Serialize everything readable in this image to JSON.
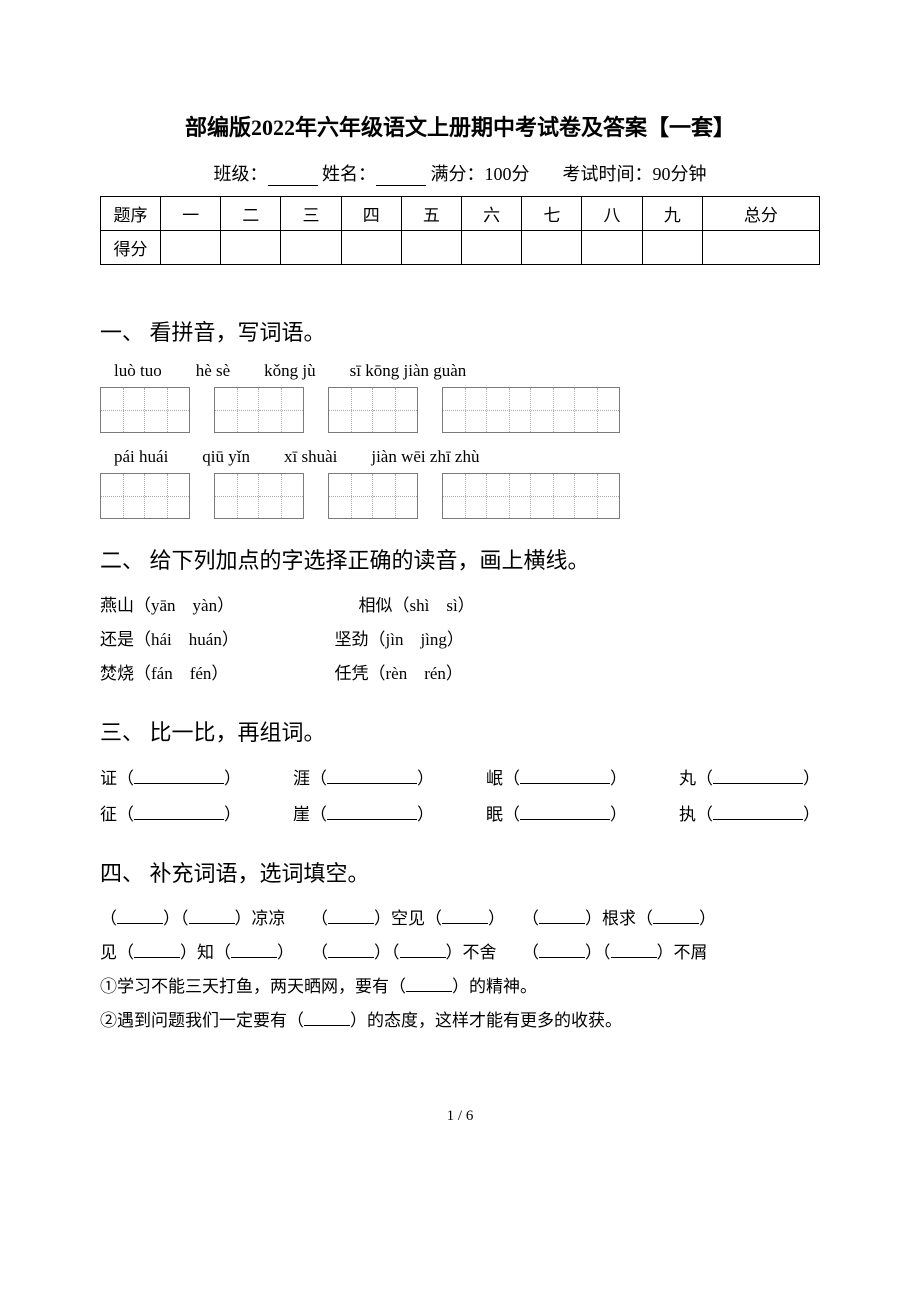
{
  "header": {
    "title": "部编版2022年六年级语文上册期中考试卷及答案【一套】",
    "class_label": "班级：",
    "name_label": "姓名：",
    "full_score_label": "满分：100分",
    "time_label": "考试时间：90分钟"
  },
  "score_table": {
    "row_labels": [
      "题序",
      "得分"
    ],
    "columns": [
      "一",
      "二",
      "三",
      "四",
      "五",
      "六",
      "七",
      "八",
      "九",
      "总分"
    ]
  },
  "section1": {
    "title": "一、 看拼音，写词语。",
    "rows": [
      {
        "pinyin": [
          "luò tuo",
          "hè sè",
          "kǒng jù",
          "sī kōng jiàn guàn"
        ],
        "box_counts": [
          2,
          2,
          2,
          4
        ]
      },
      {
        "pinyin": [
          "pái huái",
          "qiū yǐn",
          "xī shuài",
          "jiàn wēi zhī zhù"
        ],
        "box_counts": [
          2,
          2,
          2,
          4
        ]
      }
    ]
  },
  "section2": {
    "title": "二、 给下列加点的字选择正确的读音，画上横线。",
    "items": [
      {
        "a": "燕山（yān　yàn）",
        "b": "相似（shì　sì）"
      },
      {
        "a": "还是（hái　huán）",
        "b": "坚劲（jìn　jìng）"
      },
      {
        "a": "焚烧（fán　fén）",
        "b": "任凭（rèn　rén）"
      }
    ]
  },
  "section3": {
    "title": "三、 比一比，再组词。",
    "rows": [
      [
        "证",
        "涯",
        "岷",
        "丸"
      ],
      [
        "征",
        "崖",
        "眠",
        "执"
      ]
    ]
  },
  "section4": {
    "title": "四、 补充词语，选词填空。",
    "line1_parts": [
      "（",
      "）（",
      "）凉凉　　（",
      "）空见（",
      "）　　（",
      "）根求（",
      "）"
    ],
    "line2_parts": [
      "见（",
      "）知（",
      "）　　（",
      "）（",
      "）不舍　　（",
      "）（",
      "）不屑"
    ],
    "line3": "①学习不能三天打鱼，两天晒网，要有（",
    "line3b": "）的精神。",
    "line4": "②遇到问题我们一定要有（",
    "line4b": "）的态度，这样才能有更多的收获。"
  },
  "footer": {
    "page": "1 / 6"
  }
}
